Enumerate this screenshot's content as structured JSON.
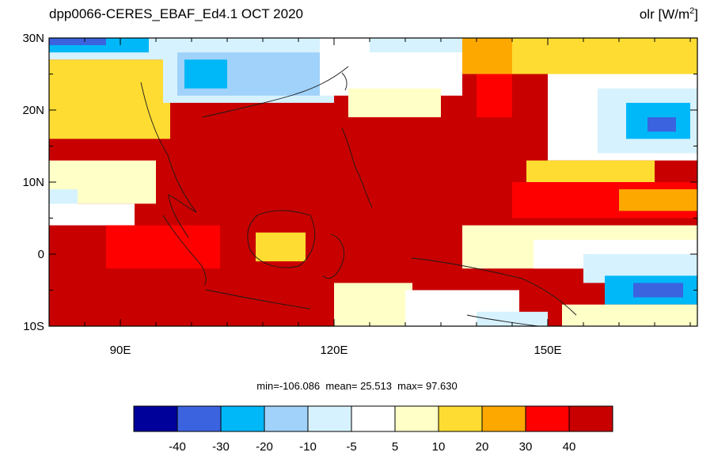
{
  "chart_data": {
    "type": "heatmap",
    "title_left": "dpp0066-CERES_EBAF_Ed4.1  OCT 2020",
    "variable": "olr",
    "units_prefix": "[W/m",
    "units_power": "2",
    "units_suffix": "]",
    "x_range": [
      80,
      171
    ],
    "y_range": [
      -10,
      30
    ],
    "x_ticks": [
      {
        "value": 90,
        "label": "90E"
      },
      {
        "value": 120,
        "label": "120E"
      },
      {
        "value": 150,
        "label": "150E"
      }
    ],
    "y_ticks": [
      {
        "value": 30,
        "label": "30N"
      },
      {
        "value": 20,
        "label": "20N"
      },
      {
        "value": 10,
        "label": "10N"
      },
      {
        "value": 0,
        "label": "0"
      },
      {
        "value": -10,
        "label": "10S"
      }
    ],
    "stats": {
      "min_label": "min=",
      "min": "-106.086",
      "mean_label": "mean=",
      "mean": "25.513",
      "max_label": "max=",
      "max": "97.630"
    },
    "colorbar": {
      "colors": [
        "#00009a",
        "#3b63e0",
        "#00b8f8",
        "#a0d2fa",
        "#d6f2fe",
        "#ffffff",
        "#ffffc8",
        "#fedc32",
        "#fda800",
        "#fe0000",
        "#c80000"
      ],
      "labels": [
        "-40",
        "-30",
        "-20",
        "-10",
        "-5",
        "5",
        "10",
        "20",
        "30",
        "40"
      ]
    },
    "regions": [
      {
        "level": 10,
        "lon": [
          80,
          171
        ],
        "lat": [
          -10,
          30
        ]
      },
      {
        "level": 7,
        "lon": [
          80,
          97
        ],
        "lat": [
          16,
          27
        ]
      },
      {
        "level": 6,
        "lon": [
          80,
          95
        ],
        "lat": [
          7,
          13
        ]
      },
      {
        "level": 4,
        "lon": [
          80,
          84
        ],
        "lat": [
          6,
          9
        ]
      },
      {
        "level": 5,
        "lon": [
          80,
          92
        ],
        "lat": [
          4,
          7
        ]
      },
      {
        "level": 4,
        "lon": [
          80,
          98
        ],
        "lat": [
          27,
          30
        ]
      },
      {
        "level": 2,
        "lon": [
          80,
          94
        ],
        "lat": [
          28,
          30
        ]
      },
      {
        "level": 1,
        "lon": [
          80,
          88
        ],
        "lat": [
          29,
          30
        ]
      },
      {
        "level": 4,
        "lon": [
          96,
          120
        ],
        "lat": [
          21,
          30
        ]
      },
      {
        "level": 3,
        "lon": [
          98,
          118
        ],
        "lat": [
          22,
          28
        ]
      },
      {
        "level": 2,
        "lon": [
          99,
          105
        ],
        "lat": [
          23,
          27
        ]
      },
      {
        "level": 5,
        "lon": [
          118,
          138
        ],
        "lat": [
          22,
          30
        ]
      },
      {
        "level": 6,
        "lon": [
          122,
          135
        ],
        "lat": [
          19,
          23
        ]
      },
      {
        "level": 4,
        "lon": [
          125,
          140
        ],
        "lat": [
          28,
          30
        ]
      },
      {
        "level": 8,
        "lon": [
          138,
          150
        ],
        "lat": [
          25,
          30
        ]
      },
      {
        "level": 9,
        "lon": [
          140,
          145
        ],
        "lat": [
          19,
          25
        ]
      },
      {
        "level": 7,
        "lon": [
          145,
          171
        ],
        "lat": [
          25,
          30
        ]
      },
      {
        "level": 5,
        "lon": [
          150,
          171
        ],
        "lat": [
          13,
          25
        ]
      },
      {
        "level": 4,
        "lon": [
          157,
          171
        ],
        "lat": [
          14,
          23
        ]
      },
      {
        "level": 2,
        "lon": [
          161,
          170
        ],
        "lat": [
          16,
          21
        ]
      },
      {
        "level": 1,
        "lon": [
          164,
          168
        ],
        "lat": [
          17,
          19
        ]
      },
      {
        "level": 7,
        "lon": [
          147,
          165
        ],
        "lat": [
          9,
          13
        ]
      },
      {
        "level": 9,
        "lon": [
          145,
          171
        ],
        "lat": [
          5,
          10
        ]
      },
      {
        "level": 8,
        "lon": [
          160,
          171
        ],
        "lat": [
          6,
          9
        ]
      },
      {
        "level": 6,
        "lon": [
          138,
          171
        ],
        "lat": [
          -2,
          4
        ]
      },
      {
        "level": 5,
        "lon": [
          148,
          171
        ],
        "lat": [
          -2,
          2
        ]
      },
      {
        "level": 4,
        "lon": [
          155,
          171
        ],
        "lat": [
          -4,
          0
        ]
      },
      {
        "level": 2,
        "lon": [
          158,
          171
        ],
        "lat": [
          -7,
          -3
        ]
      },
      {
        "level": 1,
        "lon": [
          162,
          169
        ],
        "lat": [
          -6,
          -4
        ]
      },
      {
        "level": 6,
        "lon": [
          152,
          171
        ],
        "lat": [
          -10,
          -7
        ]
      },
      {
        "level": 9,
        "lon": [
          88,
          104
        ],
        "lat": [
          -2,
          4
        ]
      },
      {
        "level": 7,
        "lon": [
          109,
          116
        ],
        "lat": [
          -1,
          3
        ]
      },
      {
        "level": 6,
        "lon": [
          120,
          131
        ],
        "lat": [
          -10,
          -4
        ]
      },
      {
        "level": 5,
        "lon": [
          130,
          146
        ],
        "lat": [
          -10,
          -5
        ]
      },
      {
        "level": 4,
        "lon": [
          140,
          150
        ],
        "lat": [
          -10,
          -8
        ]
      }
    ]
  }
}
